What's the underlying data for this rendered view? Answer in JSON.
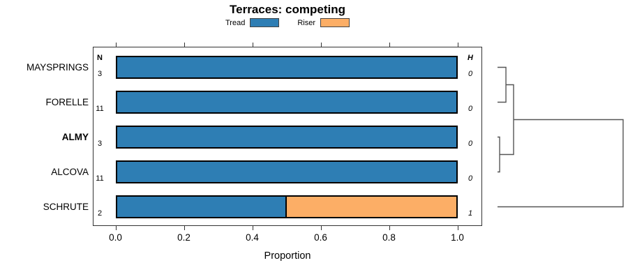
{
  "chart_data": {
    "type": "bar",
    "orientation": "horizontal",
    "stacked": true,
    "title": "Terraces: competing",
    "xlabel": "Proportion",
    "xlim": [
      0,
      1
    ],
    "x_ticks": [
      0,
      0.2,
      0.4,
      0.6,
      0.8,
      1
    ],
    "x_tick_labels": [
      "0.0",
      "0.2",
      "0.4",
      "0.6",
      "0.8",
      "1.0"
    ],
    "grid": false,
    "legend_position": "top",
    "categories": [
      "MAYSPRINGS",
      "FORELLE",
      "ALMY",
      "ALCOVA",
      "SCHRUTE"
    ],
    "bold_category_index": 2,
    "series": [
      {
        "name": "Tread",
        "color": "#2e7eb4",
        "values": [
          1.0,
          1.0,
          1.0,
          1.0,
          0.5
        ]
      },
      {
        "name": "Riser",
        "color": "#fcae66",
        "values": [
          0.0,
          0.0,
          0.0,
          0.0,
          0.5
        ]
      }
    ],
    "left_column": {
      "header": "N",
      "values": [
        3,
        11,
        3,
        11,
        2
      ]
    },
    "right_column": {
      "header": "H",
      "values": [
        0,
        0,
        0,
        0,
        1
      ]
    },
    "dendrogram": {
      "side": "right",
      "leaf_ids": [
        0,
        1,
        2,
        3,
        4
      ],
      "merges": [
        {
          "a": 0,
          "b": 1,
          "height": 0.067
        },
        {
          "a": 2,
          "b": 3,
          "height": 0.017
        },
        {
          "a": 5,
          "b": 6,
          "height": 0.128
        },
        {
          "a": 7,
          "b": 4,
          "height": 1.0
        }
      ]
    }
  }
}
